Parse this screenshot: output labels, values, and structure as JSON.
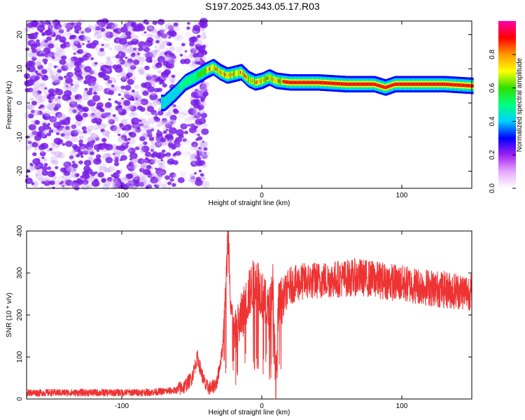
{
  "title": "S197.2025.343.05.17.R03",
  "colors": {
    "snr_line": "#ee3333",
    "speckle": "#7a1ee8",
    "axis": "#000000"
  },
  "chart_data": [
    {
      "type": "heatmap",
      "name": "spectrogram",
      "xlabel": "Height of straight line (km)",
      "ylabel": "Frequency (Hz)",
      "xlim": [
        -168,
        150
      ],
      "ylim": [
        -25,
        24
      ],
      "xticks": [
        -100,
        0,
        100
      ],
      "yticks": [
        -20,
        -10,
        0,
        10,
        20
      ],
      "colorbar": {
        "label": "Normalized spectral amplitude",
        "range": [
          0.0,
          1.0
        ],
        "ticks": [
          0.0,
          0.2,
          0.4,
          0.6,
          0.8
        ],
        "tick_labels": [
          "0.0",
          "0.2",
          "0.4",
          "0.6",
          "0.8"
        ],
        "stops": [
          "#ffffff",
          "#e6a8ff",
          "#a020f0",
          "#0000ff",
          "#00d0ff",
          "#00ff80",
          "#30e000",
          "#ffff00",
          "#ff9900",
          "#ff0000",
          "#ff00aa"
        ]
      },
      "ridge": {
        "x": [
          -70,
          -62,
          -55,
          -48,
          -40,
          -35,
          -30,
          -25,
          -20,
          -15,
          -10,
          -5,
          0,
          5,
          10,
          20,
          40,
          60,
          80,
          88,
          95,
          110,
          130,
          150
        ],
        "y": [
          0,
          3,
          6,
          7.5,
          9.5,
          10.5,
          9,
          8,
          8.5,
          9,
          7,
          6,
          6.5,
          7.5,
          6.5,
          6,
          6,
          5.5,
          5.5,
          4.5,
          5.5,
          5.5,
          5.5,
          5
        ]
      }
    },
    {
      "type": "line",
      "name": "snr",
      "xlabel": "Height of straight line (km)",
      "ylabel": "SNR (10 * v/v)",
      "xlim": [
        -168,
        150
      ],
      "ylim": [
        0,
        400
      ],
      "xticks": [
        -100,
        0,
        100
      ],
      "yticks": [
        0,
        100,
        200,
        300,
        400
      ],
      "series": [
        {
          "name": "SNR",
          "x": [
            -168,
            -140,
            -110,
            -80,
            -62,
            -55,
            -50,
            -46,
            -43,
            -40,
            -36,
            -32,
            -28,
            -24,
            -22,
            -20,
            -16,
            -12,
            -8,
            -4,
            0,
            5,
            8,
            10,
            12,
            15,
            20,
            30,
            50,
            70,
            90,
            110,
            130,
            150
          ],
          "y": [
            15,
            15,
            15,
            16,
            20,
            30,
            50,
            100,
            60,
            30,
            25,
            40,
            120,
            400,
            230,
            140,
            180,
            220,
            260,
            290,
            250,
            200,
            280,
            30,
            220,
            240,
            270,
            280,
            285,
            290,
            280,
            270,
            260,
            255
          ]
        }
      ]
    }
  ]
}
